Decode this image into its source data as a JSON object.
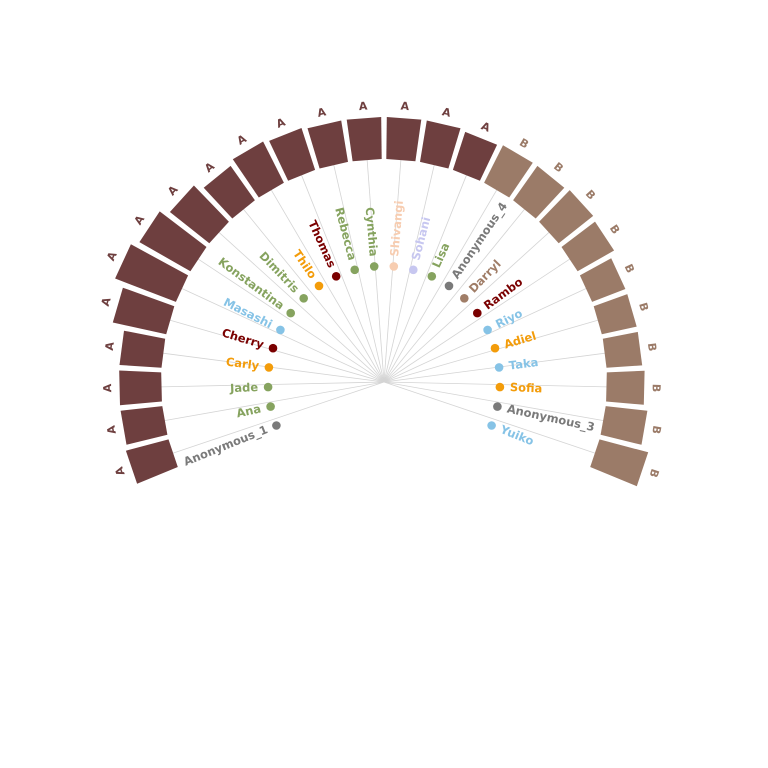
{
  "colors": {
    "group_A": "#6e3f3f",
    "group_B": "#9b7b68",
    "spoke": "#d4d4d4",
    "green": "#86a35f",
    "orange": "#f39c0a",
    "maroon": "#7a0000",
    "sky": "#86c3e6",
    "gray": "#7a7a7a",
    "peach": "#f7cdb1",
    "lavender": "#c7c7f0",
    "taupe": "#a07d67"
  },
  "chart_data": {
    "type": "radial-bundle",
    "groups": [
      {
        "id": "A",
        "label": "A",
        "count": 16
      },
      {
        "id": "B",
        "label": "B",
        "count": 10
      }
    ],
    "segments": [
      {
        "group": "A",
        "label": "A",
        "size": 1.05
      },
      {
        "group": "A",
        "label": "A",
        "size": 1.0
      },
      {
        "group": "A",
        "label": "A",
        "size": 1.0
      },
      {
        "group": "A",
        "label": "A",
        "size": 1.0
      },
      {
        "group": "A",
        "label": "A",
        "size": 1.3
      },
      {
        "group": "A",
        "label": "A",
        "size": 1.55
      },
      {
        "group": "A",
        "label": "A",
        "size": 1.4
      },
      {
        "group": "A",
        "label": "A",
        "size": 1.2
      },
      {
        "group": "A",
        "label": "A",
        "size": 1.0
      },
      {
        "group": "A",
        "label": "A",
        "size": 1.1
      },
      {
        "group": "A",
        "label": "A",
        "size": 1.05
      },
      {
        "group": "A",
        "label": "A",
        "size": 1.0
      },
      {
        "group": "A",
        "label": "A",
        "size": 1.0
      },
      {
        "group": "A",
        "label": "A",
        "size": 1.0
      },
      {
        "group": "A",
        "label": "A",
        "size": 1.0
      },
      {
        "group": "A",
        "label": "A",
        "size": 0.95
      },
      {
        "group": "B",
        "label": "B",
        "size": 1.0
      },
      {
        "group": "B",
        "label": "B",
        "size": 1.0
      },
      {
        "group": "B",
        "label": "B",
        "size": 1.05
      },
      {
        "group": "B",
        "label": "B",
        "size": 1.0
      },
      {
        "group": "B",
        "label": "B",
        "size": 0.85
      },
      {
        "group": "B",
        "label": "B",
        "size": 0.85
      },
      {
        "group": "B",
        "label": "B",
        "size": 0.85
      },
      {
        "group": "B",
        "label": "B",
        "size": 0.9
      },
      {
        "group": "B",
        "label": "B",
        "size": 1.0
      },
      {
        "group": "B",
        "label": "B",
        "size": 1.2
      }
    ],
    "people": [
      {
        "name": "Anonymous_1",
        "color": "gray"
      },
      {
        "name": "Ana",
        "color": "green"
      },
      {
        "name": "Jade",
        "color": "green"
      },
      {
        "name": "Carly",
        "color": "orange"
      },
      {
        "name": "Cherry",
        "color": "maroon"
      },
      {
        "name": "Masashi",
        "color": "sky"
      },
      {
        "name": "Konstantina",
        "color": "green"
      },
      {
        "name": "Dimitris",
        "color": "green"
      },
      {
        "name": "Thilo",
        "color": "orange"
      },
      {
        "name": "Thomas",
        "color": "maroon"
      },
      {
        "name": "Rebecca",
        "color": "green"
      },
      {
        "name": "Cynthia",
        "color": "green"
      },
      {
        "name": "Shivangi",
        "color": "peach"
      },
      {
        "name": "Sohani",
        "color": "lavender"
      },
      {
        "name": "Lisa",
        "color": "green"
      },
      {
        "name": "Anonymous_4",
        "color": "gray"
      },
      {
        "name": "Darryl",
        "color": "taupe"
      },
      {
        "name": "Rambo",
        "color": "maroon"
      },
      {
        "name": "Riyo",
        "color": "sky"
      },
      {
        "name": "Adiel",
        "color": "orange"
      },
      {
        "name": "Taka",
        "color": "sky"
      },
      {
        "name": "Sofia",
        "color": "orange"
      },
      {
        "name": "Anonymous_3",
        "color": "gray"
      },
      {
        "name": "Yuiko",
        "color": "sky"
      }
    ]
  }
}
